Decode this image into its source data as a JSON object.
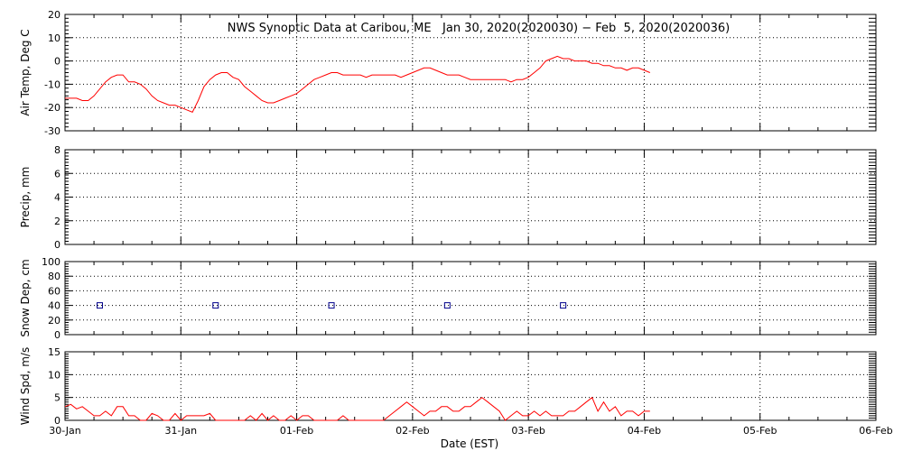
{
  "title": "NWS Synoptic Data at Caribou, ME   Jan 30, 2020(2020030) − Feb  5, 2020(2020036)",
  "xlabel": "Date (EST)",
  "x_ticks": [
    "30-Jan",
    "31-Jan",
    "01-Feb",
    "02-Feb",
    "03-Feb",
    "04-Feb",
    "05-Feb",
    "06-Feb"
  ],
  "colors": {
    "line": "#ff0000",
    "marker": "#00008b",
    "axis": "#000000"
  },
  "chart_data": [
    {
      "type": "line",
      "name": "air-temp",
      "ylabel": "Air Temp, Deg C",
      "ylim": [
        -30,
        20
      ],
      "yticks": [
        20,
        10,
        0,
        -10,
        -20,
        -30
      ],
      "xlim_days": [
        0,
        7
      ],
      "grid": true,
      "x_days": [
        0,
        0.05,
        0.1,
        0.15,
        0.2,
        0.25,
        0.3,
        0.35,
        0.4,
        0.45,
        0.5,
        0.55,
        0.6,
        0.65,
        0.7,
        0.75,
        0.8,
        0.85,
        0.9,
        0.95,
        1.0,
        1.05,
        1.1,
        1.15,
        1.2,
        1.25,
        1.3,
        1.35,
        1.4,
        1.45,
        1.5,
        1.55,
        1.6,
        1.65,
        1.7,
        1.75,
        1.8,
        1.85,
        1.9,
        1.95,
        2.0,
        2.05,
        2.1,
        2.15,
        2.2,
        2.25,
        2.3,
        2.35,
        2.4,
        2.45,
        2.5,
        2.55,
        2.6,
        2.65,
        2.7,
        2.75,
        2.8,
        2.85,
        2.9,
        2.95,
        3.0,
        3.05,
        3.1,
        3.15,
        3.2,
        3.25,
        3.3,
        3.35,
        3.4,
        3.45,
        3.5,
        3.55,
        3.6,
        3.65,
        3.7,
        3.75,
        3.8,
        3.85,
        3.9,
        3.95,
        4.0,
        4.05,
        4.1,
        4.15,
        4.2,
        4.25,
        4.3,
        4.35,
        4.4,
        4.45,
        4.5,
        4.55,
        4.6,
        4.65,
        4.7,
        4.75,
        4.8,
        4.85,
        4.9,
        4.95,
        5.0,
        5.05
      ],
      "values": [
        -16,
        -16,
        -16,
        -17,
        -17,
        -15,
        -12,
        -9,
        -7,
        -6,
        -6,
        -9,
        -9,
        -10,
        -12,
        -15,
        -17,
        -18,
        -19,
        -19,
        -20,
        -21,
        -22,
        -17,
        -11,
        -8,
        -6,
        -5,
        -5,
        -7,
        -8,
        -11,
        -13,
        -15,
        -17,
        -18,
        -18,
        -17,
        -16,
        -15,
        -14,
        -12,
        -10,
        -8,
        -7,
        -6,
        -5,
        -5,
        -6,
        -6,
        -6,
        -6,
        -7,
        -6,
        -6,
        -6,
        -6,
        -6,
        -7,
        -6,
        -5,
        -4,
        -3,
        -3,
        -4,
        -5,
        -6,
        -6,
        -6,
        -7,
        -8,
        -8,
        -8,
        -8,
        -8,
        -8,
        -8,
        -9,
        -8,
        -8,
        -7,
        -5,
        -3,
        0,
        1,
        2,
        1,
        1,
        0,
        0,
        0,
        -1,
        -1,
        -2,
        -2,
        -3,
        -3,
        -4,
        -3,
        -3,
        -4,
        -5
      ]
    },
    {
      "type": "line",
      "name": "precip",
      "ylabel": "Precip, mm",
      "ylim": [
        0,
        8
      ],
      "yticks": [
        8,
        6,
        4,
        2,
        0
      ],
      "xlim_days": [
        0,
        7
      ],
      "grid": true,
      "x_days": [],
      "values": []
    },
    {
      "type": "scatter",
      "name": "snow-depth",
      "ylabel": "Snow Dep, cm",
      "ylim": [
        0,
        100
      ],
      "yticks": [
        100,
        80,
        60,
        40,
        20,
        0
      ],
      "xlim_days": [
        0,
        7
      ],
      "grid": true,
      "x_days": [
        0.3,
        1.3,
        2.3,
        3.3,
        4.3
      ],
      "values": [
        40,
        40,
        40,
        40,
        40
      ]
    },
    {
      "type": "line",
      "name": "wind-speed",
      "ylabel": "Wind Spd, m/s",
      "ylim": [
        0,
        15
      ],
      "yticks": [
        15,
        10,
        5,
        0
      ],
      "xlim_days": [
        0,
        7
      ],
      "grid": true,
      "x_days": [
        0,
        0.05,
        0.1,
        0.15,
        0.2,
        0.25,
        0.3,
        0.35,
        0.4,
        0.45,
        0.5,
        0.55,
        0.6,
        0.65,
        0.7,
        0.75,
        0.8,
        0.85,
        0.9,
        0.95,
        1.0,
        1.05,
        1.1,
        1.15,
        1.2,
        1.25,
        1.3,
        1.35,
        1.4,
        1.45,
        1.5,
        1.55,
        1.6,
        1.65,
        1.7,
        1.75,
        1.8,
        1.85,
        1.9,
        1.95,
        2.0,
        2.05,
        2.1,
        2.15,
        2.2,
        2.25,
        2.3,
        2.35,
        2.4,
        2.45,
        2.5,
        2.55,
        2.6,
        2.65,
        2.7,
        2.75,
        2.8,
        2.85,
        2.9,
        2.95,
        3.0,
        3.05,
        3.1,
        3.15,
        3.2,
        3.25,
        3.3,
        3.35,
        3.4,
        3.45,
        3.5,
        3.55,
        3.6,
        3.65,
        3.7,
        3.75,
        3.8,
        3.85,
        3.9,
        3.95,
        4.0,
        4.05,
        4.1,
        4.15,
        4.2,
        4.25,
        4.3,
        4.35,
        4.4,
        4.45,
        4.5,
        4.55,
        4.6,
        4.65,
        4.7,
        4.75,
        4.8,
        4.85,
        4.9,
        4.95,
        5.0,
        5.05
      ],
      "values": [
        3,
        3.5,
        2.5,
        3,
        2,
        1,
        1,
        2,
        1,
        3,
        3,
        1,
        1,
        0,
        0,
        1.5,
        1,
        0,
        0,
        1.5,
        0,
        1,
        1,
        1,
        1,
        1.5,
        0,
        0,
        0,
        0,
        0,
        0,
        1,
        0,
        1.5,
        0,
        1,
        0,
        0,
        1,
        0,
        1,
        1,
        0,
        0,
        0,
        0,
        0,
        1,
        0,
        0,
        0,
        0,
        0,
        0,
        0,
        1,
        2,
        3,
        4,
        3,
        2,
        1,
        2,
        2,
        3,
        3,
        2,
        2,
        3,
        3,
        4,
        5,
        4,
        3,
        2,
        0,
        1,
        2,
        1,
        1,
        2,
        1,
        2,
        1,
        1,
        1,
        2,
        2,
        3,
        4,
        5,
        2,
        4,
        2,
        3,
        1,
        2,
        2,
        1,
        2,
        2
      ]
    }
  ]
}
